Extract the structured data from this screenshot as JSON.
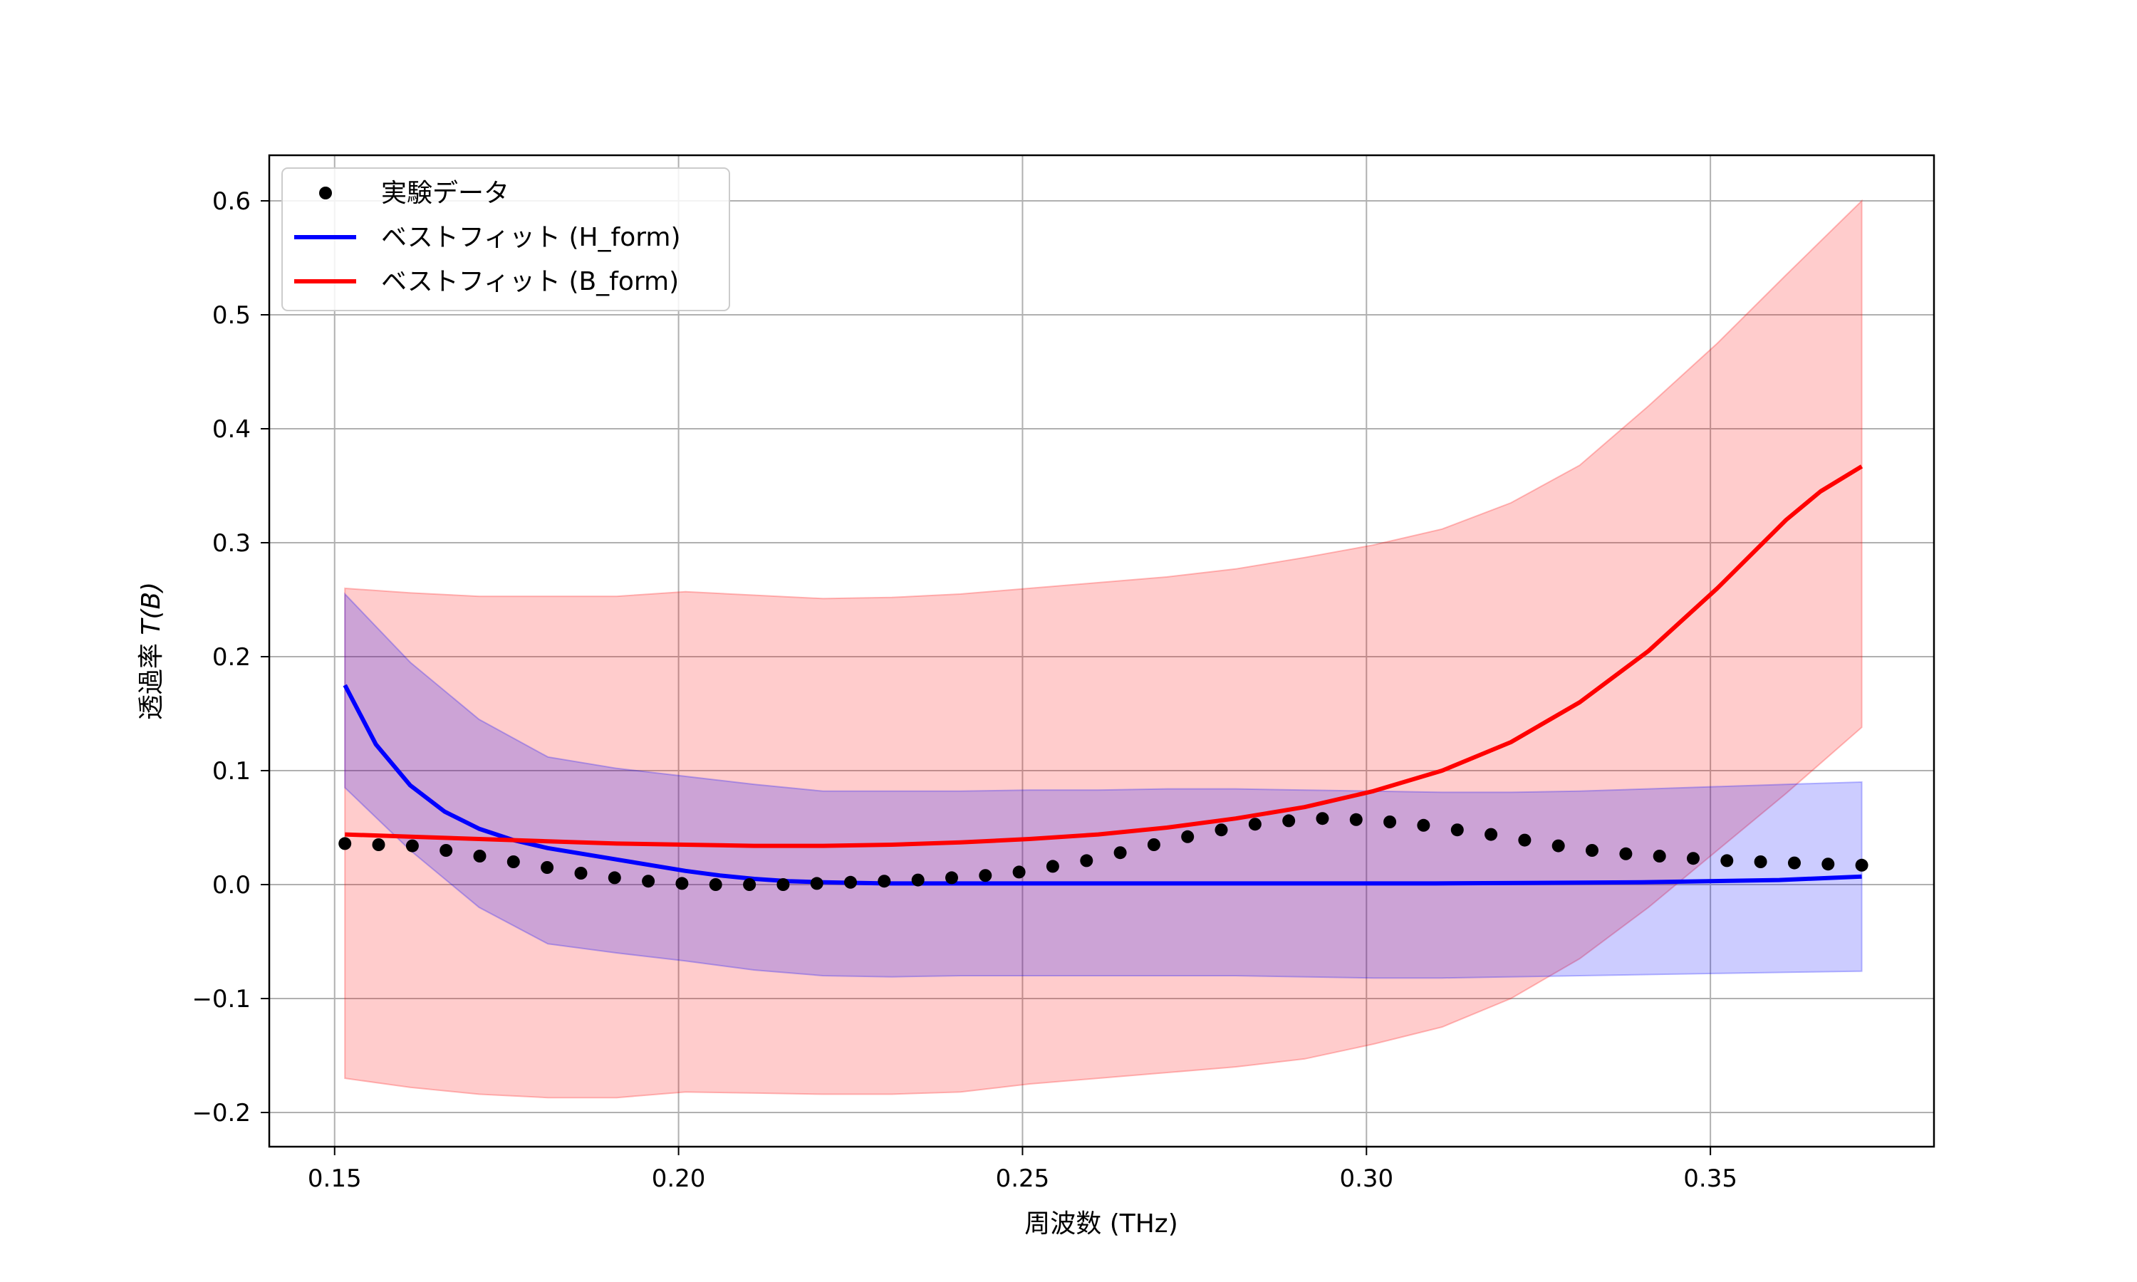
{
  "chart_data": {
    "type": "line",
    "xlabel": "周波数 (THz)",
    "ylabel_prefix": "透過率 ",
    "ylabel_math": "T(B)",
    "xlim": [
      0.1405,
      0.3825
    ],
    "ylim": [
      -0.23,
      0.64
    ],
    "xticks": [
      0.15,
      0.2,
      0.25,
      0.3,
      0.35
    ],
    "xtick_labels": [
      "0.15",
      "0.20",
      "0.25",
      "0.30",
      "0.35"
    ],
    "yticks": [
      -0.2,
      -0.1,
      0.0,
      0.1,
      0.2,
      0.3,
      0.4,
      0.5,
      0.6
    ],
    "ytick_labels": [
      "−0.2",
      "−0.1",
      "0.0",
      "0.1",
      "0.2",
      "0.3",
      "0.4",
      "0.5",
      "0.6"
    ],
    "grid": true,
    "legend_position": "top-left",
    "series": [
      {
        "name": "実験データ",
        "kind": "scatter",
        "color": "#000000",
        "x": [
          0.1515,
          0.1564,
          0.1613,
          0.1662,
          0.1711,
          0.176,
          0.1809,
          0.1858,
          0.1907,
          0.1956,
          0.2005,
          0.2054,
          0.2103,
          0.2152,
          0.2201,
          0.225,
          0.2299,
          0.2348,
          0.2397,
          0.2446,
          0.2495,
          0.2544,
          0.2593,
          0.2642,
          0.2691,
          0.274,
          0.2789,
          0.2838,
          0.2887,
          0.2936,
          0.2985,
          0.3034,
          0.3083,
          0.3132,
          0.3181,
          0.323,
          0.3279,
          0.3328,
          0.3377,
          0.3426,
          0.3475,
          0.3524,
          0.3573,
          0.3622,
          0.3671,
          0.372
        ],
        "y": [
          0.036,
          0.035,
          0.034,
          0.03,
          0.025,
          0.02,
          0.015,
          0.01,
          0.006,
          0.003,
          0.001,
          0.0,
          0.0,
          0.0,
          0.001,
          0.002,
          0.003,
          0.004,
          0.006,
          0.008,
          0.011,
          0.016,
          0.021,
          0.028,
          0.035,
          0.042,
          0.048,
          0.053,
          0.056,
          0.058,
          0.057,
          0.055,
          0.052,
          0.048,
          0.044,
          0.039,
          0.034,
          0.03,
          0.027,
          0.025,
          0.023,
          0.021,
          0.02,
          0.019,
          0.018,
          0.017
        ]
      },
      {
        "name": "ベストフィット (H_form)",
        "kind": "line",
        "color": "#0000ff",
        "band_color": "#0000ff",
        "x": [
          0.1515,
          0.156,
          0.161,
          0.166,
          0.171,
          0.176,
          0.181,
          0.186,
          0.191,
          0.196,
          0.201,
          0.206,
          0.211,
          0.216,
          0.221,
          0.23,
          0.25,
          0.28,
          0.31,
          0.34,
          0.36,
          0.372
        ],
        "y": [
          0.175,
          0.123,
          0.087,
          0.064,
          0.049,
          0.039,
          0.032,
          0.027,
          0.022,
          0.017,
          0.012,
          0.008,
          0.005,
          0.003,
          0.002,
          0.001,
          0.001,
          0.001,
          0.001,
          0.002,
          0.004,
          0.007
        ],
        "band_x": [
          0.1515,
          0.161,
          0.171,
          0.181,
          0.191,
          0.201,
          0.211,
          0.221,
          0.231,
          0.241,
          0.251,
          0.261,
          0.271,
          0.281,
          0.291,
          0.301,
          0.311,
          0.321,
          0.331,
          0.341,
          0.351,
          0.361,
          0.372
        ],
        "band_lower": [
          0.085,
          0.03,
          -0.02,
          -0.052,
          -0.06,
          -0.067,
          -0.075,
          -0.08,
          -0.081,
          -0.08,
          -0.08,
          -0.08,
          -0.08,
          -0.08,
          -0.081,
          -0.082,
          -0.082,
          -0.081,
          -0.08,
          -0.079,
          -0.078,
          -0.077,
          -0.076
        ],
        "band_upper": [
          0.255,
          0.195,
          0.145,
          0.112,
          0.102,
          0.095,
          0.088,
          0.082,
          0.082,
          0.082,
          0.083,
          0.083,
          0.084,
          0.084,
          0.083,
          0.082,
          0.081,
          0.081,
          0.082,
          0.084,
          0.086,
          0.088,
          0.09
        ]
      },
      {
        "name": "ベストフィット (B_form)",
        "kind": "line",
        "color": "#ff0000",
        "band_color": "#ff0000",
        "x": [
          0.1515,
          0.161,
          0.171,
          0.181,
          0.191,
          0.201,
          0.211,
          0.221,
          0.231,
          0.241,
          0.251,
          0.261,
          0.271,
          0.281,
          0.291,
          0.301,
          0.311,
          0.321,
          0.331,
          0.341,
          0.351,
          0.361,
          0.366,
          0.372
        ],
        "y": [
          0.044,
          0.042,
          0.04,
          0.038,
          0.036,
          0.035,
          0.034,
          0.034,
          0.035,
          0.037,
          0.04,
          0.044,
          0.05,
          0.058,
          0.068,
          0.082,
          0.1,
          0.125,
          0.16,
          0.205,
          0.26,
          0.32,
          0.345,
          0.367
        ],
        "band_x": [
          0.1515,
          0.161,
          0.171,
          0.181,
          0.191,
          0.201,
          0.211,
          0.221,
          0.231,
          0.241,
          0.251,
          0.261,
          0.271,
          0.281,
          0.291,
          0.301,
          0.311,
          0.321,
          0.331,
          0.341,
          0.351,
          0.361,
          0.372
        ],
        "band_lower": [
          -0.17,
          -0.178,
          -0.184,
          -0.187,
          -0.187,
          -0.182,
          -0.183,
          -0.184,
          -0.184,
          -0.182,
          -0.175,
          -0.17,
          -0.165,
          -0.16,
          -0.153,
          -0.14,
          -0.125,
          -0.1,
          -0.065,
          -0.02,
          0.03,
          0.08,
          0.138
        ],
        "band_upper": [
          0.26,
          0.256,
          0.253,
          0.253,
          0.253,
          0.257,
          0.254,
          0.251,
          0.252,
          0.255,
          0.26,
          0.265,
          0.27,
          0.277,
          0.287,
          0.298,
          0.312,
          0.335,
          0.368,
          0.42,
          0.475,
          0.535,
          0.6
        ]
      }
    ]
  }
}
